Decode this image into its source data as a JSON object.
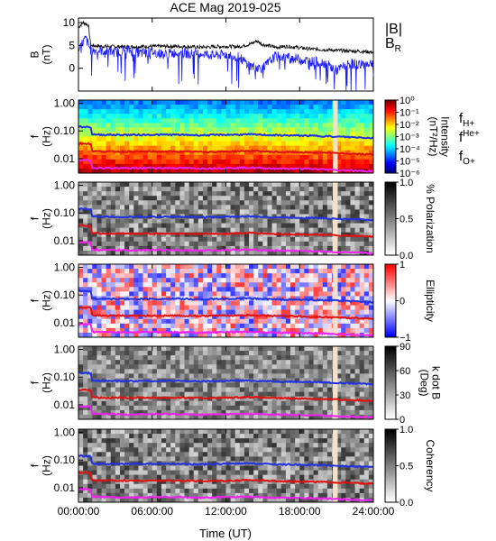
{
  "chart_data": {
    "title": "ACE Mag 2019-025",
    "xlabel": "Time (UT)",
    "xticks": [
      "00:00:00",
      "06:00:00",
      "12:00:00",
      "18:00:00",
      "24:00:00"
    ],
    "xlim_hours": [
      0,
      24
    ],
    "data_gap_hours": [
      20.7,
      21.1
    ],
    "freq_ticks": [
      "1.00",
      "0.10",
      "0.01"
    ],
    "freq_ylabel": "f",
    "freq_units": "(Hz)",
    "panels": [
      {
        "type": "line",
        "ylabel": "B",
        "units": "(nT)",
        "yticks": [
          "10",
          "5",
          "0"
        ],
        "ylim": [
          -5,
          11
        ],
        "series": [
          {
            "name": "|B|",
            "color": "#000000",
            "x": [
              0,
              0.4,
              0.8,
              1.0,
              2,
              4,
              6,
              8,
              10,
              12,
              13,
              14,
              14.5,
              15,
              16,
              17,
              18,
              19,
              20,
              21,
              22,
              23,
              24
            ],
            "values": [
              9,
              10,
              9.5,
              5,
              4.8,
              4.7,
              4.8,
              4.8,
              4.6,
              4.8,
              4.7,
              5.3,
              6,
              5.2,
              4.6,
              4.8,
              4.5,
              4.2,
              4.1,
              3.9,
              3.8,
              3.7,
              3.5
            ]
          },
          {
            "name": "B",
            "sub": "R",
            "color": "#1a1aff",
            "x": [
              0,
              0.3,
              0.6,
              1.0,
              2,
              3,
              4,
              5,
              6,
              7,
              8,
              9,
              10,
              11,
              12,
              13,
              14,
              15,
              16,
              17,
              18,
              19,
              20,
              21,
              22,
              23,
              24
            ],
            "values": [
              3,
              5.5,
              6.5,
              4,
              3.8,
              3.5,
              4,
              3.3,
              3.6,
              3,
              3.5,
              3.2,
              3.3,
              2.8,
              3,
              2.5,
              0.5,
              0,
              2.6,
              2.4,
              2,
              1.5,
              1.2,
              -0.5,
              1,
              0.8,
              1.2
            ]
          }
        ]
      },
      {
        "type": "heatmap",
        "name": "intensity",
        "colorbar_label": "Intensity",
        "colorbar_units": "(nT²/Hz)",
        "colorbar_ticks": [
          "10⁰",
          "10⁻¹",
          "10⁻²",
          "10⁻³",
          "10⁻⁴",
          "10⁻⁵",
          "10⁻⁶"
        ],
        "legend": [
          {
            "label": "f",
            "sub": "H+",
            "color": "#2233dd"
          },
          {
            "label": "f",
            "sup": "He+",
            "color": "#cc1111"
          },
          {
            "label": "f",
            "sub": "O+",
            "color": "#dd22dd"
          }
        ]
      },
      {
        "type": "heatmap",
        "name": "polarization",
        "colorbar_label": "% Polarization",
        "colorbar_ticks": [
          "1.0",
          "0.5",
          "0.0"
        ]
      },
      {
        "type": "heatmap",
        "name": "ellipticity",
        "colorbar_label": "Ellipticity",
        "colorbar_ticks": [
          "1",
          "0",
          "−1"
        ]
      },
      {
        "type": "heatmap",
        "name": "kdotb",
        "colorbar_label": "k dot B",
        "colorbar_units": "(Deg)",
        "colorbar_ticks": [
          "90",
          "60",
          "30",
          "0"
        ]
      },
      {
        "type": "heatmap",
        "name": "coherency",
        "colorbar_label": "Coherency",
        "colorbar_ticks": [
          "1.0",
          "0.5",
          "0.0"
        ]
      }
    ],
    "gyrofrequency_hz": {
      "x": [
        0,
        1.0,
        1.1,
        2,
        4,
        6,
        8,
        10,
        12,
        14,
        16,
        18,
        20,
        21,
        22,
        23,
        24
      ],
      "H+": [
        0.14,
        0.14,
        0.075,
        0.073,
        0.072,
        0.073,
        0.073,
        0.07,
        0.073,
        0.075,
        0.07,
        0.068,
        0.065,
        0.062,
        0.06,
        0.058,
        0.055
      ],
      "He+": [
        0.035,
        0.035,
        0.019,
        0.018,
        0.018,
        0.018,
        0.018,
        0.0175,
        0.018,
        0.019,
        0.0175,
        0.017,
        0.016,
        0.0155,
        0.015,
        0.0145,
        0.014
      ],
      "O+": [
        0.0088,
        0.0088,
        0.0047,
        0.0046,
        0.0045,
        0.0046,
        0.0046,
        0.0044,
        0.0046,
        0.0047,
        0.0044,
        0.0043,
        0.0041,
        0.0039,
        0.0038,
        0.0036,
        0.0035
      ]
    }
  }
}
